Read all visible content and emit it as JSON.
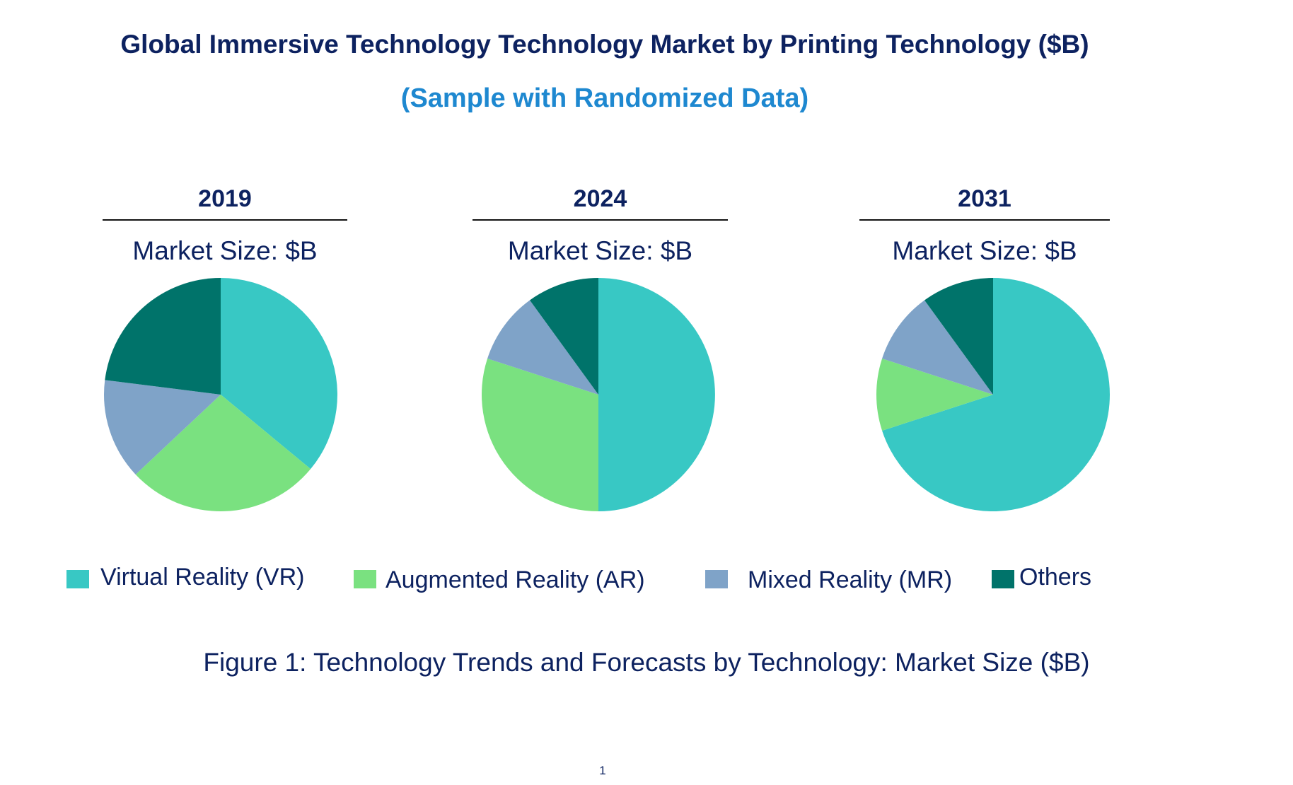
{
  "title": "Global Immersive Technology Technology Market by Printing Technology ($B)",
  "subtitle": "(Sample with Randomized Data)",
  "caption": "Figure 1: Technology Trends and Forecasts by Technology: Market Size ($B)",
  "page_number": "1",
  "chart_data": {
    "type": "pie",
    "legend_position": "bottom",
    "categories": [
      "Virtual Reality (VR)",
      "Augmented Reality (AR)",
      "Mixed Reality (MR)",
      "Others"
    ],
    "colors": [
      "#38C8C4",
      "#7AE180",
      "#7FA3C8",
      "#00736A"
    ],
    "charts": [
      {
        "year": "2019",
        "market_size_label": "Market Size: $B",
        "values": [
          36,
          27,
          14,
          23
        ]
      },
      {
        "year": "2024",
        "market_size_label": "Market Size: $B",
        "values": [
          50,
          30,
          10,
          10
        ]
      },
      {
        "year": "2031",
        "market_size_label": "Market Size: $B",
        "values": [
          70,
          10,
          10,
          10
        ]
      }
    ]
  }
}
